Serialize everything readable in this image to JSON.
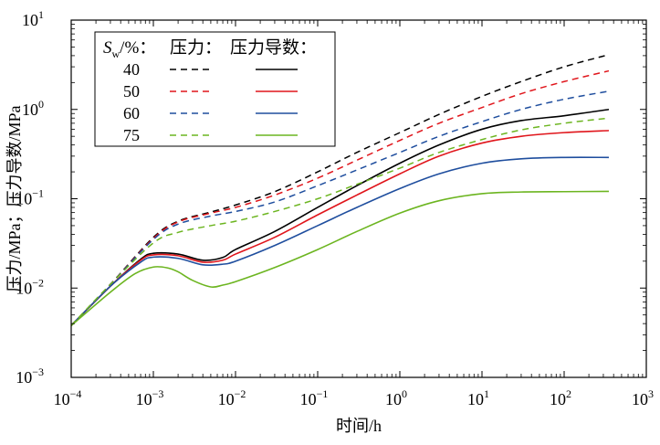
{
  "chart_data": {
    "type": "line",
    "xlabel": "时间/h",
    "ylabel": "压力/MPa；压力导数/MPa",
    "x_scale": "log",
    "y_scale": "log",
    "xlim": [
      0.0001,
      1000
    ],
    "ylim": [
      0.001,
      10
    ],
    "x_ticks": [
      {
        "base": "10",
        "exp": "−4"
      },
      {
        "base": "10",
        "exp": "−3"
      },
      {
        "base": "10",
        "exp": "−2"
      },
      {
        "base": "10",
        "exp": "−1"
      },
      {
        "base": "10",
        "exp": "0"
      },
      {
        "base": "10",
        "exp": "1"
      },
      {
        "base": "10",
        "exp": "2"
      },
      {
        "base": "10",
        "exp": "3"
      }
    ],
    "y_ticks": [
      {
        "base": "10",
        "exp": "−3"
      },
      {
        "base": "10",
        "exp": "−2"
      },
      {
        "base": "10",
        "exp": "−1"
      },
      {
        "base": "10",
        "exp": "0"
      },
      {
        "base": "10",
        "exp": "1"
      }
    ],
    "grid": false,
    "legend": {
      "position": "top-left",
      "header": {
        "symbol": "S",
        "sub": "w",
        "rest": "/%：",
        "col1": "压力：",
        "col2": "压力导数："
      },
      "entries": [
        "40",
        "50",
        "60",
        "75"
      ]
    },
    "series": [
      {
        "name": "40",
        "color": "#000000",
        "pressure": {
          "x": [
            0.0001,
            0.0003,
            0.001,
            0.002,
            0.005,
            0.01,
            0.03,
            0.1,
            0.3,
            1,
            3,
            10,
            30,
            100,
            350
          ],
          "y": [
            0.0038,
            0.011,
            0.037,
            0.056,
            0.071,
            0.085,
            0.12,
            0.2,
            0.33,
            0.55,
            0.88,
            1.4,
            2.05,
            3.0,
            4.1
          ]
        },
        "derivative": {
          "x": [
            0.0001,
            0.0003,
            0.0007,
            0.001,
            0.002,
            0.004,
            0.007,
            0.01,
            0.03,
            0.1,
            0.3,
            1,
            3,
            10,
            30,
            100,
            350
          ],
          "y": [
            0.0038,
            0.0105,
            0.021,
            0.0245,
            0.024,
            0.0205,
            0.022,
            0.027,
            0.043,
            0.08,
            0.14,
            0.25,
            0.4,
            0.6,
            0.75,
            0.85,
            1.0
          ]
        }
      },
      {
        "name": "50",
        "color": "#e0151b",
        "pressure": {
          "x": [
            0.0001,
            0.0003,
            0.001,
            0.002,
            0.005,
            0.01,
            0.03,
            0.1,
            0.3,
            1,
            3,
            10,
            30,
            100,
            350
          ],
          "y": [
            0.0038,
            0.011,
            0.036,
            0.055,
            0.069,
            0.08,
            0.11,
            0.17,
            0.27,
            0.45,
            0.7,
            1.05,
            1.5,
            2.05,
            2.7
          ]
        },
        "derivative": {
          "x": [
            0.0001,
            0.0003,
            0.0007,
            0.001,
            0.002,
            0.004,
            0.007,
            0.01,
            0.03,
            0.1,
            0.3,
            1,
            3,
            10,
            30,
            100,
            350
          ],
          "y": [
            0.0038,
            0.0105,
            0.0205,
            0.0235,
            0.023,
            0.0195,
            0.0205,
            0.024,
            0.037,
            0.066,
            0.11,
            0.19,
            0.3,
            0.42,
            0.5,
            0.55,
            0.58
          ]
        }
      },
      {
        "name": "60",
        "color": "#1f4e9e",
        "pressure": {
          "x": [
            0.0001,
            0.0003,
            0.001,
            0.002,
            0.005,
            0.01,
            0.03,
            0.1,
            0.3,
            1,
            3,
            10,
            30,
            100,
            350
          ],
          "y": [
            0.0038,
            0.011,
            0.035,
            0.052,
            0.064,
            0.072,
            0.092,
            0.14,
            0.21,
            0.33,
            0.5,
            0.73,
            1.0,
            1.3,
            1.6
          ]
        },
        "derivative": {
          "x": [
            0.0001,
            0.0003,
            0.0007,
            0.001,
            0.002,
            0.004,
            0.007,
            0.01,
            0.03,
            0.1,
            0.3,
            1,
            3,
            10,
            30,
            100,
            350
          ],
          "y": [
            0.0038,
            0.0105,
            0.0195,
            0.0222,
            0.0215,
            0.0182,
            0.0185,
            0.02,
            0.03,
            0.05,
            0.08,
            0.13,
            0.19,
            0.25,
            0.28,
            0.29,
            0.29
          ]
        }
      },
      {
        "name": "75",
        "color": "#6cb520",
        "pressure": {
          "x": [
            0.0001,
            0.0003,
            0.001,
            0.002,
            0.005,
            0.01,
            0.03,
            0.1,
            0.3,
            1,
            3,
            10,
            30,
            100,
            350
          ],
          "y": [
            0.0038,
            0.011,
            0.032,
            0.042,
            0.05,
            0.056,
            0.072,
            0.1,
            0.145,
            0.22,
            0.33,
            0.46,
            0.59,
            0.7,
            0.8
          ]
        },
        "derivative": {
          "x": [
            0.0001,
            0.0003,
            0.0006,
            0.001,
            0.0015,
            0.002,
            0.003,
            0.005,
            0.007,
            0.01,
            0.03,
            0.1,
            0.3,
            1,
            3,
            10,
            30,
            100,
            350
          ],
          "y": [
            0.0038,
            0.009,
            0.0145,
            0.0172,
            0.0168,
            0.0152,
            0.0122,
            0.0103,
            0.0108,
            0.0118,
            0.017,
            0.027,
            0.043,
            0.069,
            0.095,
            0.114,
            0.119,
            0.12,
            0.121
          ]
        }
      }
    ]
  }
}
